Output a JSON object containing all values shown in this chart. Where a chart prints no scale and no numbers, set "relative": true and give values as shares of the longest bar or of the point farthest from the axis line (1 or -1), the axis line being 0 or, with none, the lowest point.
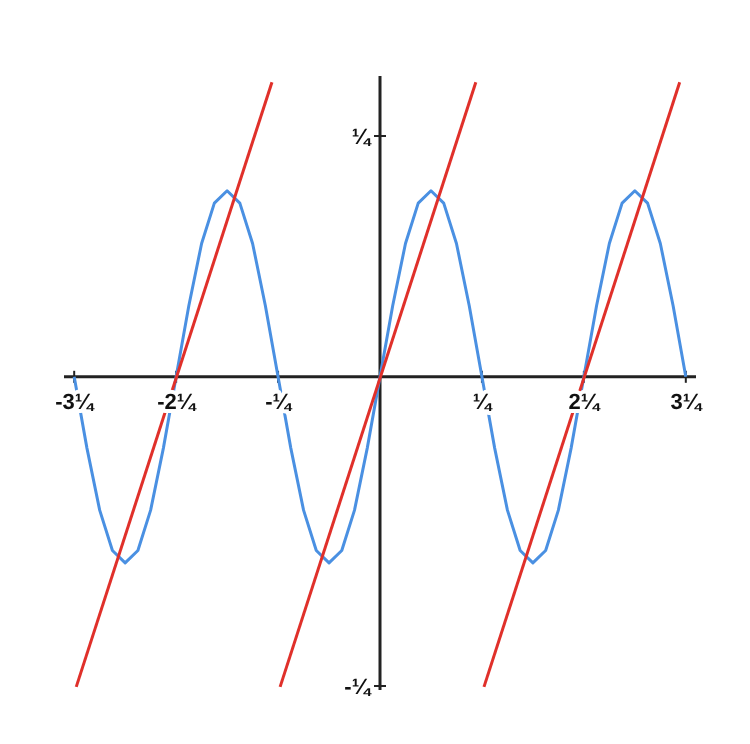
{
  "chart_data": {
    "type": "line",
    "relative": true,
    "x": [
      -3,
      -2.875,
      -2.75,
      -2.625,
      -2.5,
      -2.375,
      -2.25,
      -2.125,
      -2,
      -1.875,
      -1.75,
      -1.625,
      -1.5,
      -1.375,
      -1.25,
      -1.125,
      -1,
      -0.875,
      -0.75,
      -0.625,
      -0.5,
      -0.375,
      -0.25,
      -0.125,
      0,
      0.125,
      0.25,
      0.375,
      0.5,
      0.625,
      0.75,
      0.875,
      1,
      1.125,
      1.25,
      1.375,
      1.5,
      1.625,
      1.75,
      1.875,
      2,
      2.125,
      2.25,
      2.375,
      2.5,
      2.625,
      2.75,
      2.875,
      3
    ],
    "series": [
      {
        "color": "#4a90e2",
        "values": [
          0,
          -0.23,
          -0.43,
          -0.56,
          -0.6,
          -0.56,
          -0.43,
          -0.23,
          0,
          0.23,
          0.43,
          0.56,
          0.6,
          0.56,
          0.43,
          0.23,
          0,
          -0.23,
          -0.43,
          -0.56,
          -0.6,
          -0.56,
          -0.43,
          -0.23,
          0,
          0.23,
          0.43,
          0.56,
          0.6,
          0.56,
          0.43,
          0.23,
          0,
          -0.23,
          -0.43,
          -0.56,
          -0.6,
          -0.56,
          -0.43,
          -0.23,
          0,
          0.23,
          0.43,
          0.56,
          0.6,
          0.56,
          0.43,
          0.23,
          0
        ]
      },
      {
        "color": "#e0302a",
        "x": [
          -2.98,
          -1.06
        ],
        "values": [
          -1,
          0.95
        ]
      },
      {
        "color": "#e0302a",
        "x": [
          -0.98,
          0.94
        ],
        "values": [
          -1,
          0.95
        ]
      },
      {
        "color": "#e0302a",
        "x": [
          1.02,
          2.94
        ],
        "values": [
          -1,
          0.95
        ]
      }
    ],
    "xlim": [
      -3.1,
      3.1
    ],
    "xticks": [
      {
        "value": -3,
        "label": "-3¼"
      },
      {
        "value": -2,
        "label": "-2¼"
      },
      {
        "value": -1,
        "label": "-¼"
      },
      {
        "value": 1,
        "label": "¼"
      },
      {
        "value": 2,
        "label": "2¼"
      },
      {
        "value": 3,
        "label": "3¼"
      }
    ],
    "annotations": [
      "¼",
      "-¼"
    ]
  }
}
